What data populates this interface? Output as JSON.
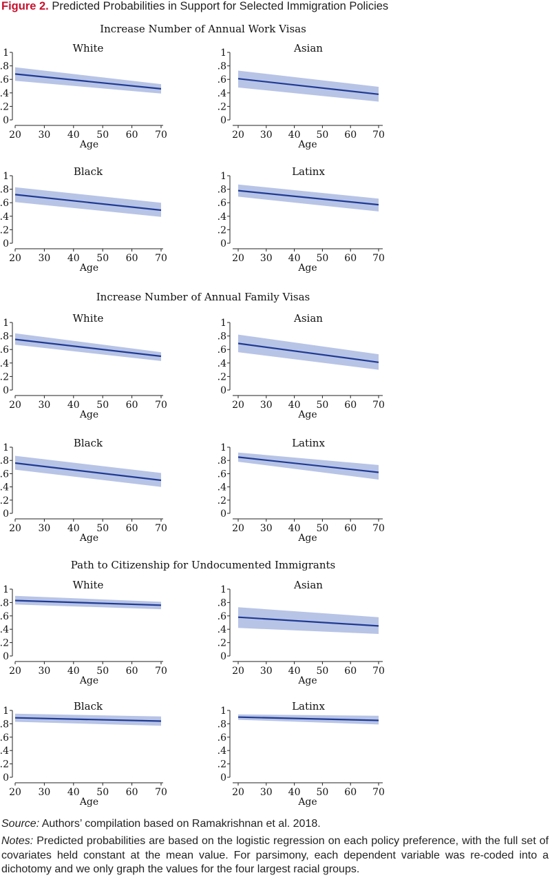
{
  "figure": {
    "label": "Figure 2.",
    "title": "Predicted Probabilities in Support for Selected Immigration Policies"
  },
  "colors": {
    "line": "#1f3a93",
    "band": "#b8c4e6",
    "label": "#c8102e"
  },
  "chart_data": [
    {
      "type": "line",
      "section": "Increase Number of Annual Work Visas",
      "title": "White",
      "xlabel": "Age",
      "x": [
        20,
        70
      ],
      "xticks": [
        20,
        30,
        40,
        50,
        60,
        70
      ],
      "ylim": [
        0,
        1
      ],
      "yticks": [
        "0",
        ".2",
        ".4",
        ".6",
        ".8",
        "1"
      ],
      "series": [
        {
          "values": [
            0.68,
            0.46
          ],
          "ci_lower": [
            0.58,
            0.39
          ],
          "ci_upper": [
            0.78,
            0.53
          ]
        }
      ]
    },
    {
      "type": "line",
      "section": "Increase Number of Annual Work Visas",
      "title": "Asian",
      "xlabel": "Age",
      "x": [
        20,
        70
      ],
      "xticks": [
        20,
        30,
        40,
        50,
        60,
        70
      ],
      "ylim": [
        0,
        1
      ],
      "yticks": [
        "0",
        ".2",
        ".4",
        ".6",
        ".8",
        "1"
      ],
      "series": [
        {
          "values": [
            0.61,
            0.38
          ],
          "ci_lower": [
            0.48,
            0.27
          ],
          "ci_upper": [
            0.73,
            0.49
          ]
        }
      ]
    },
    {
      "type": "line",
      "section": "Increase Number of Annual Work Visas",
      "title": "Black",
      "xlabel": "Age",
      "x": [
        20,
        70
      ],
      "xticks": [
        20,
        30,
        40,
        50,
        60,
        70
      ],
      "ylim": [
        0,
        1
      ],
      "yticks": [
        "0",
        ".2",
        ".4",
        ".6",
        ".8",
        "1"
      ],
      "series": [
        {
          "values": [
            0.72,
            0.49
          ],
          "ci_lower": [
            0.61,
            0.39
          ],
          "ci_upper": [
            0.83,
            0.6
          ]
        }
      ]
    },
    {
      "type": "line",
      "section": "Increase Number of Annual Work Visas",
      "title": "Latinx",
      "xlabel": "Age",
      "x": [
        20,
        70
      ],
      "xticks": [
        20,
        30,
        40,
        50,
        60,
        70
      ],
      "ylim": [
        0,
        1
      ],
      "yticks": [
        "0",
        ".2",
        ".4",
        ".6",
        ".8",
        "1"
      ],
      "series": [
        {
          "values": [
            0.78,
            0.57
          ],
          "ci_lower": [
            0.69,
            0.47
          ],
          "ci_upper": [
            0.87,
            0.66
          ]
        }
      ]
    },
    {
      "type": "line",
      "section": "Increase Number of Annual Family Visas",
      "title": "White",
      "xlabel": "Age",
      "x": [
        20,
        70
      ],
      "xticks": [
        20,
        30,
        40,
        50,
        60,
        70
      ],
      "ylim": [
        0,
        1
      ],
      "yticks": [
        "0",
        ".2",
        ".4",
        ".6",
        ".8",
        "1"
      ],
      "series": [
        {
          "values": [
            0.75,
            0.5
          ],
          "ci_lower": [
            0.67,
            0.43
          ],
          "ci_upper": [
            0.84,
            0.56
          ]
        }
      ]
    },
    {
      "type": "line",
      "section": "Increase Number of Annual Family Visas",
      "title": "Asian",
      "xlabel": "Age",
      "x": [
        20,
        70
      ],
      "xticks": [
        20,
        30,
        40,
        50,
        60,
        70
      ],
      "ylim": [
        0,
        1
      ],
      "yticks": [
        "0",
        ".2",
        ".4",
        ".6",
        ".8",
        "1"
      ],
      "series": [
        {
          "values": [
            0.69,
            0.41
          ],
          "ci_lower": [
            0.56,
            0.3
          ],
          "ci_upper": [
            0.82,
            0.53
          ]
        }
      ]
    },
    {
      "type": "line",
      "section": "Increase Number of Annual Family Visas",
      "title": "Black",
      "xlabel": "Age",
      "x": [
        20,
        70
      ],
      "xticks": [
        20,
        30,
        40,
        50,
        60,
        70
      ],
      "ylim": [
        0,
        1
      ],
      "yticks": [
        "0",
        ".2",
        ".4",
        ".6",
        ".8",
        "1"
      ],
      "series": [
        {
          "values": [
            0.76,
            0.5
          ],
          "ci_lower": [
            0.66,
            0.4
          ],
          "ci_upper": [
            0.87,
            0.61
          ]
        }
      ]
    },
    {
      "type": "line",
      "section": "Increase Number of Annual Family Visas",
      "title": "Latinx",
      "xlabel": "Age",
      "x": [
        20,
        70
      ],
      "xticks": [
        20,
        30,
        40,
        50,
        60,
        70
      ],
      "ylim": [
        0,
        1
      ],
      "yticks": [
        "0",
        ".2",
        ".4",
        ".6",
        ".8",
        "1"
      ],
      "series": [
        {
          "values": [
            0.85,
            0.62
          ],
          "ci_lower": [
            0.78,
            0.51
          ],
          "ci_upper": [
            0.92,
            0.73
          ]
        }
      ]
    },
    {
      "type": "line",
      "section": "Path to Citizenship for Undocumented Immigrants",
      "title": "White",
      "xlabel": "Age",
      "x": [
        20,
        70
      ],
      "xticks": [
        20,
        30,
        40,
        50,
        60,
        70
      ],
      "ylim": [
        0,
        1
      ],
      "yticks": [
        "0",
        ".2",
        ".4",
        ".6",
        ".8",
        "1"
      ],
      "series": [
        {
          "values": [
            0.83,
            0.76
          ],
          "ci_lower": [
            0.77,
            0.7
          ],
          "ci_upper": [
            0.9,
            0.81
          ]
        }
      ]
    },
    {
      "type": "line",
      "section": "Path to Citizenship for Undocumented Immigrants",
      "title": "Asian",
      "xlabel": "Age",
      "x": [
        20,
        70
      ],
      "xticks": [
        20,
        30,
        40,
        50,
        60,
        70
      ],
      "ylim": [
        0,
        1
      ],
      "yticks": [
        "0",
        ".2",
        ".4",
        ".6",
        ".8",
        "1"
      ],
      "series": [
        {
          "values": [
            0.58,
            0.45
          ],
          "ci_lower": [
            0.42,
            0.33
          ],
          "ci_upper": [
            0.73,
            0.58
          ]
        }
      ]
    },
    {
      "type": "line",
      "section": "Path to Citizenship for Undocumented Immigrants",
      "title": "Black",
      "xlabel": "Age",
      "x": [
        20,
        70
      ],
      "xticks": [
        20,
        30,
        40,
        50,
        60,
        70
      ],
      "ylim": [
        0,
        1
      ],
      "yticks": [
        "0",
        ".2",
        ".4",
        ".6",
        ".8",
        "1"
      ],
      "series": [
        {
          "values": [
            0.89,
            0.84
          ],
          "ci_lower": [
            0.83,
            0.77
          ],
          "ci_upper": [
            0.95,
            0.91
          ]
        }
      ]
    },
    {
      "type": "line",
      "section": "Path to Citizenship for Undocumented Immigrants",
      "title": "Latinx",
      "xlabel": "Age",
      "x": [
        20,
        70
      ],
      "xticks": [
        20,
        30,
        40,
        50,
        60,
        70
      ],
      "ylim": [
        0,
        1
      ],
      "yticks": [
        "0",
        ".2",
        ".4",
        ".6",
        ".8",
        "1"
      ],
      "series": [
        {
          "values": [
            0.9,
            0.85
          ],
          "ci_lower": [
            0.86,
            0.79
          ],
          "ci_upper": [
            0.94,
            0.92
          ]
        }
      ]
    }
  ],
  "source": {
    "label": "Source:",
    "text": " Authors’ compilation based on Ramakrishnan et al. 2018."
  },
  "notes": {
    "label": "Notes:",
    "text": " Predicted probabilities are based on the logistic regression on each policy preference, with the full set of covariates held constant at the mean value. For parsimony, each dependent variable was re-coded into a dichotomy and we only graph the values for the four largest racial groups."
  }
}
